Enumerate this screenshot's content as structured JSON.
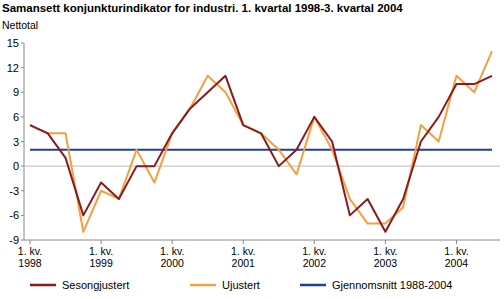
{
  "chart_data": {
    "type": "line",
    "title": "Samansett konjunkturindikator for industri. 1. kvartal 1998-3. kvartal 2004",
    "y_label": "Nettotal",
    "categories": [
      "1. kv. 1998",
      null,
      null,
      null,
      "1. kv. 1999",
      null,
      null,
      null,
      "1. kv. 2000",
      null,
      null,
      null,
      "1. kv. 2001",
      null,
      null,
      null,
      "1. kv. 2002",
      null,
      null,
      null,
      "1. kv. 2003",
      null,
      null,
      null,
      "1. kv. 2004",
      null,
      null
    ],
    "series": [
      {
        "name": "Sesongjustert",
        "color": "#8b1a1a",
        "values": [
          5,
          4,
          1,
          -6,
          -2,
          -4,
          0,
          0,
          4,
          7,
          9,
          11,
          5,
          4,
          0,
          2,
          6,
          3,
          -6,
          -4,
          -8,
          -4,
          3,
          6,
          10,
          10,
          11
        ]
      },
      {
        "name": "Ujustert",
        "color": "#f5a040",
        "values": [
          5,
          4,
          4,
          -8,
          -3,
          -4,
          2,
          -2,
          4,
          7,
          11,
          9,
          5,
          4,
          2,
          -1,
          6,
          2,
          -4,
          -7,
          -7,
          -5,
          5,
          3,
          11,
          9,
          14
        ]
      },
      {
        "name": "Gjennomsnitt 1988-2004",
        "color": "#1f3f99",
        "values": [
          2,
          2,
          2,
          2,
          2,
          2,
          2,
          2,
          2,
          2,
          2,
          2,
          2,
          2,
          2,
          2,
          2,
          2,
          2,
          2,
          2,
          2,
          2,
          2,
          2,
          2,
          2
        ]
      }
    ],
    "ylim": [
      -9,
      15
    ],
    "yticks": [
      -9,
      -6,
      -3,
      0,
      3,
      6,
      9,
      12,
      15
    ],
    "grid": false,
    "legend": "bottom"
  }
}
